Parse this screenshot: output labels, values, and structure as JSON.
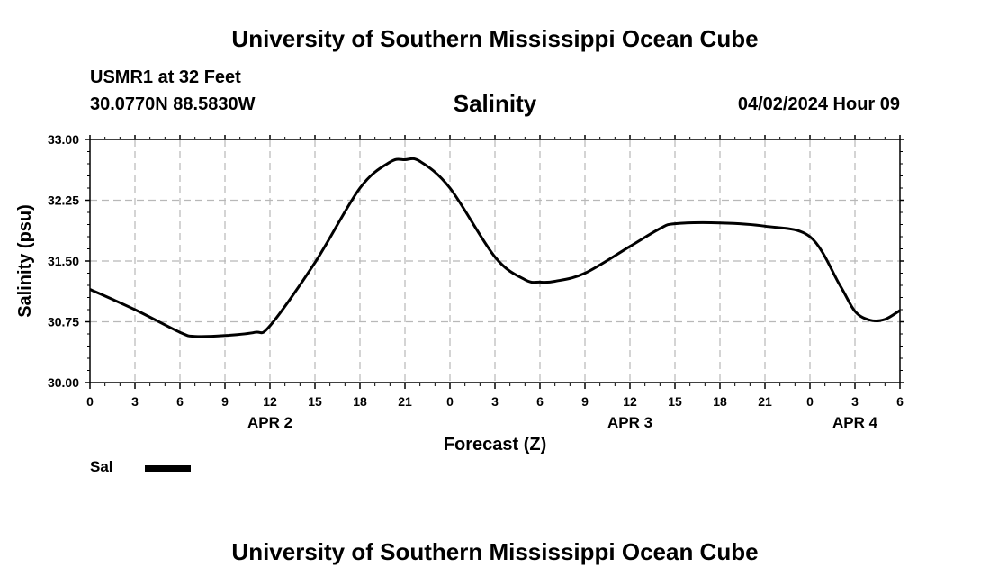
{
  "header": {
    "title_top": "University of Southern Mississippi Ocean Cube",
    "station": "USMR1 at 32 Feet",
    "coordinates": "30.0770N  88.5830W",
    "run_time": "04/02/2024 Hour 09",
    "title_bottom": "University of Southern Mississippi Ocean Cube"
  },
  "legend": {
    "label": "Sal",
    "color": "#000000"
  },
  "chart_data": {
    "type": "line",
    "title": "Salinity",
    "xlabel": "Forecast (Z)",
    "ylabel": "Salinity (psu)",
    "xlim": [
      0,
      54
    ],
    "ylim": [
      30.0,
      33.0
    ],
    "grid": true,
    "x_tick_values": [
      0,
      3,
      6,
      9,
      12,
      15,
      18,
      21,
      24,
      27,
      30,
      33,
      36,
      39,
      42,
      45,
      48,
      51,
      54
    ],
    "x_tick_labels": [
      "0",
      "3",
      "6",
      "9",
      "12",
      "15",
      "18",
      "21",
      "0",
      "3",
      "6",
      "9",
      "12",
      "15",
      "18",
      "21",
      "0",
      "3",
      "6"
    ],
    "y_tick_values": [
      30.0,
      30.75,
      31.5,
      32.25,
      33.0
    ],
    "y_tick_labels": [
      "30.00",
      "30.75",
      "31.50",
      "32.25",
      "33.00"
    ],
    "date_labels": [
      {
        "x": 12,
        "label": "APR 2"
      },
      {
        "x": 36,
        "label": "APR 3"
      },
      {
        "x": 51,
        "label": "APR 4"
      }
    ],
    "series": [
      {
        "name": "Sal",
        "x": [
          0,
          3,
          6,
          7,
          9,
          11,
          12,
          15,
          18,
          20,
          21,
          22,
          24,
          27,
          29,
          30,
          31,
          33,
          36,
          38,
          39,
          42,
          45,
          48,
          50,
          51,
          52,
          53,
          54
        ],
        "y": [
          31.15,
          30.9,
          30.62,
          30.57,
          30.58,
          30.62,
          30.7,
          31.48,
          32.4,
          32.72,
          32.75,
          32.73,
          32.4,
          31.55,
          31.27,
          31.24,
          31.25,
          31.35,
          31.68,
          31.9,
          31.96,
          31.97,
          31.93,
          31.8,
          31.2,
          30.88,
          30.77,
          30.78,
          30.89
        ]
      }
    ]
  }
}
